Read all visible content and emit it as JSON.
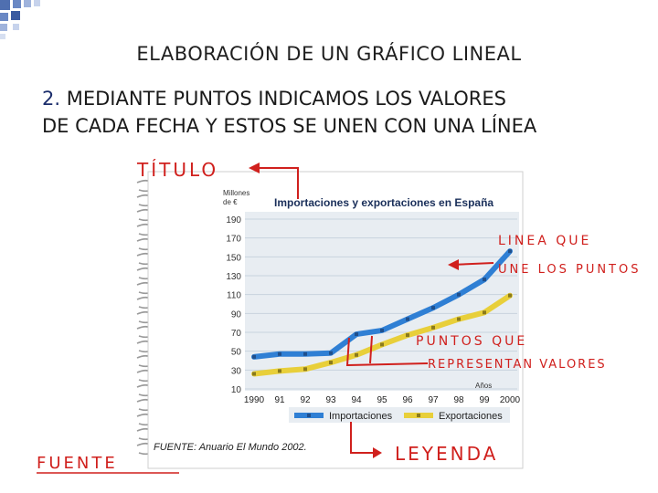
{
  "slide": {
    "title": "ELABORACIÓN DE UN GRÁFICO LINEAL",
    "subtitle_number": "2.",
    "subtitle_line1": "MEDIANTE PUNTOS INDICAMOS LOS VALORES",
    "subtitle_line2": "DE CADA FECHA Y ESTOS SE UNEN CON UNA LÍNEA"
  },
  "annotations": {
    "titulo": "TÍTULO",
    "linea_que": "LINEA QUE",
    "une_los_puntos": "UNE LOS PUNTOS",
    "puntos_que": "PUNTOS QUE",
    "representan": "REPRESENTAN VALORES",
    "leyenda": "LEYENDA",
    "fuente": "FUENTE"
  },
  "colors": {
    "importaciones": "#2f7fd4",
    "exportaciones": "#e8cf3a",
    "annotation_red": "#d0201d",
    "chart_bg": "#e8edf2",
    "corner_blue": "#4f6fb0"
  },
  "chart_data": {
    "type": "line",
    "title": "Importaciones y exportaciones en España",
    "ylabel": "Millones de €",
    "xlabel": "Años",
    "x": [
      "1990",
      "91",
      "92",
      "93",
      "94",
      "95",
      "96",
      "97",
      "98",
      "99",
      "2000"
    ],
    "yticks": [
      10,
      30,
      50,
      70,
      90,
      110,
      130,
      150,
      170,
      190
    ],
    "ylim": [
      10,
      190
    ],
    "grid": true,
    "legend": "bottom",
    "source": "FUENTE: Anuario El Mundo 2002.",
    "series": [
      {
        "name": "Importaciones",
        "values": [
          44,
          47,
          47,
          48,
          68,
          72,
          84,
          96,
          110,
          126,
          156
        ]
      },
      {
        "name": "Exportaciones",
        "values": [
          26,
          29,
          31,
          38,
          46,
          57,
          67,
          75,
          84,
          91,
          109
        ]
      }
    ]
  }
}
